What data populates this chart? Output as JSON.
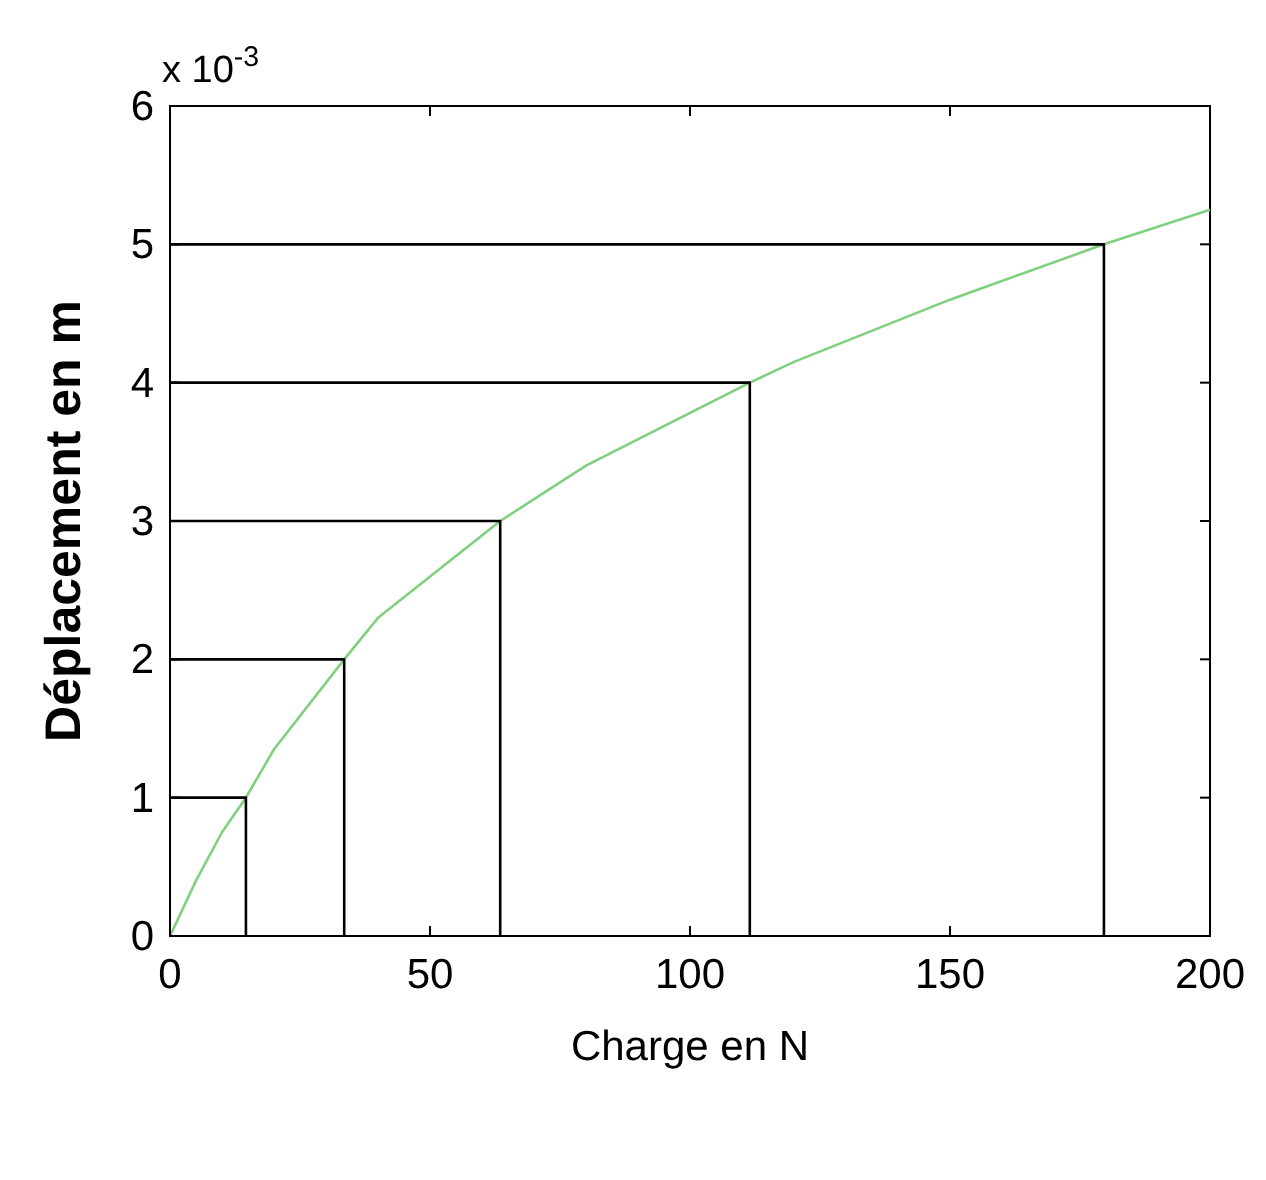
{
  "chart_data": {
    "type": "line",
    "xlabel": "Charge en N",
    "ylabel": "Déplacement en m",
    "annotations": [
      "x 10$^{-3}$"
    ],
    "xlim": [
      0,
      200
    ],
    "ylim": [
      0,
      6
    ],
    "xticks": [
      0,
      50,
      100,
      150,
      200
    ],
    "yticks": [
      0,
      1,
      2,
      3,
      4,
      5,
      6
    ],
    "grid": false,
    "marker": "none",
    "line_style": "solid",
    "series": [
      {
        "color": "#80d080",
        "x": [
          0,
          5,
          10,
          14.6,
          20,
          33.5,
          40,
          63.5,
          80,
          111.5,
          120,
          150,
          179.6,
          200
        ],
        "values": [
          0,
          0.4,
          0.75,
          1,
          1.35,
          2,
          2.3,
          3,
          3.4,
          4,
          4.15,
          4.6,
          5,
          5.25
        ]
      },
      {
        "color": "#000000",
        "x": [
          0,
          14.6,
          14.6
        ],
        "values": [
          1,
          1,
          0
        ]
      },
      {
        "color": "#000000",
        "x": [
          0,
          33.5,
          33.5
        ],
        "values": [
          2,
          2,
          0
        ]
      },
      {
        "color": "#000000",
        "x": [
          0,
          63.5,
          63.5
        ],
        "values": [
          3,
          3,
          0
        ]
      },
      {
        "color": "#000000",
        "x": [
          0,
          111.5,
          111.5
        ],
        "values": [
          4,
          4,
          0
        ]
      },
      {
        "color": "#000000",
        "x": [
          0,
          179.6,
          179.6
        ],
        "values": [
          5,
          5,
          0
        ]
      }
    ]
  }
}
